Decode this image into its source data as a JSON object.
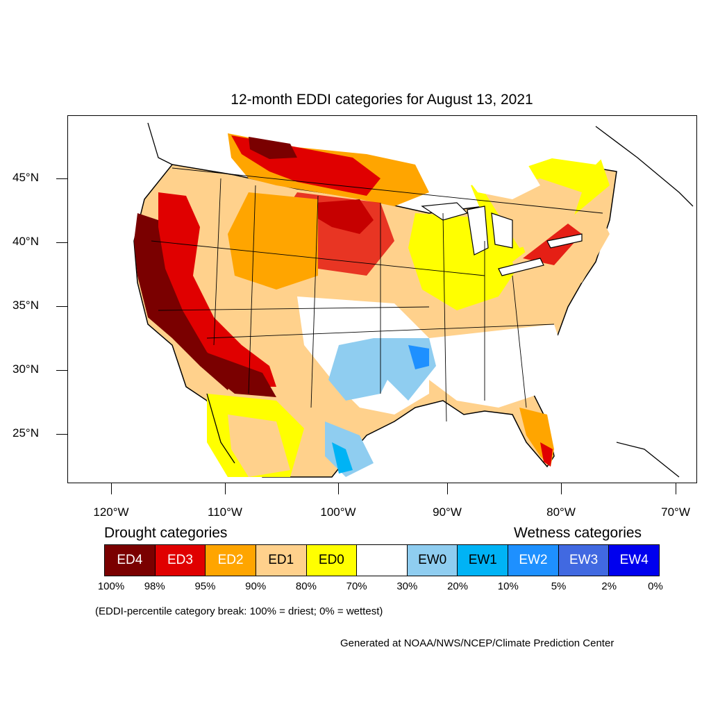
{
  "title": "12-month EDDI categories for August 13, 2021",
  "map": {
    "region": "Contiguous United States",
    "latitude_labels": [
      "45°N",
      "40°N",
      "35°N",
      "30°N",
      "25°N"
    ],
    "longitude_labels": [
      "120°W",
      "110°W",
      "100°W",
      "90°W",
      "80°W",
      "70°W"
    ]
  },
  "legend": {
    "drought_heading": "Drought categories",
    "wetness_heading": "Wetness categories",
    "categories": [
      {
        "label": "ED4",
        "color": "#7a0000",
        "text_color": "#ffffff"
      },
      {
        "label": "ED3",
        "color": "#e00000",
        "text_color": "#ffffff"
      },
      {
        "label": "ED2",
        "color": "#ffa500",
        "text_color": "#ffffff"
      },
      {
        "label": "ED1",
        "color": "#ffd18c",
        "text_color": "#000000"
      },
      {
        "label": "ED0",
        "color": "#ffff00",
        "text_color": "#000000"
      },
      {
        "label": "",
        "color": "#ffffff",
        "text_color": "#000000"
      },
      {
        "label": "EW0",
        "color": "#8fcdf0",
        "text_color": "#000000"
      },
      {
        "label": "EW1",
        "color": "#00b3f5",
        "text_color": "#000000"
      },
      {
        "label": "EW2",
        "color": "#1e90ff",
        "text_color": "#ffffff"
      },
      {
        "label": "EW3",
        "color": "#4169e1",
        "text_color": "#ffffff"
      },
      {
        "label": "EW4",
        "color": "#0000ee",
        "text_color": "#ffffff"
      }
    ],
    "percentile_breaks": [
      "100%",
      "98%",
      "95%",
      "90%",
      "80%",
      "70%",
      "30%",
      "20%",
      "10%",
      "5%",
      "2%",
      "0%"
    ]
  },
  "note": "(EDDI-percentile category break: 100% = driest; 0% = wettest)",
  "credit": "Generated at NOAA/NWS/NCEP/Climate Prediction Center"
}
